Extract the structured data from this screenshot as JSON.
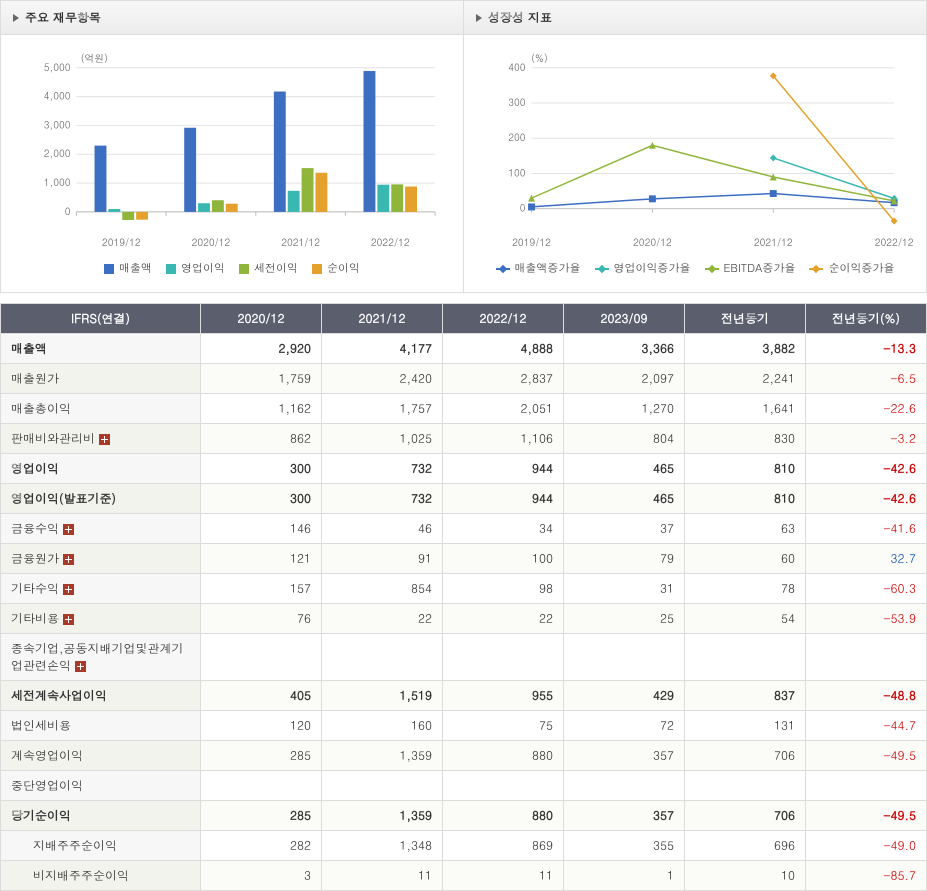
{
  "panels": {
    "left": {
      "title": "주요 재무항목",
      "unit_label": "(억원)"
    },
    "right": {
      "title": "성장성 지표",
      "unit_label": "(%)"
    }
  },
  "barChart": {
    "type": "bar",
    "categories": [
      "2019/12",
      "2020/12",
      "2021/12",
      "2022/12"
    ],
    "series": [
      {
        "name": "매출액",
        "color": "#3c6fc1",
        "values": [
          2300,
          2920,
          4177,
          4888
        ]
      },
      {
        "name": "영업이익",
        "color": "#39b7b1",
        "values": [
          100,
          300,
          732,
          944
        ]
      },
      {
        "name": "세전이익",
        "color": "#8fb53a",
        "values": [
          -280,
          405,
          1519,
          955
        ]
      },
      {
        "name": "순이익",
        "color": "#e4a12b",
        "values": [
          -270,
          285,
          1359,
          880
        ]
      }
    ],
    "ylim": [
      -500,
      5000
    ],
    "yticks": [
      0,
      1000,
      2000,
      3000,
      4000,
      5000
    ],
    "label_fontsize": 10,
    "grid_color": "#e3e3e3",
    "axis_color": "#bcbcbc",
    "background_color": "#ffffff"
  },
  "lineChart": {
    "type": "line",
    "categories": [
      "2019/12",
      "2020/12",
      "2021/12",
      "2022/12"
    ],
    "series": [
      {
        "name": "매출액증가율",
        "color": "#3c6fc1",
        "marker": "square",
        "values": [
          5,
          28,
          43,
          17
        ]
      },
      {
        "name": "영업이익증가율",
        "color": "#39b7b1",
        "marker": "diamond",
        "values": [
          null,
          null,
          144,
          29
        ]
      },
      {
        "name": "EBITDA증가율",
        "color": "#8fb53a",
        "marker": "triangle",
        "values": [
          30,
          180,
          90,
          22
        ]
      },
      {
        "name": "순이익증가율",
        "color": "#e4a12b",
        "marker": "diamond",
        "values": [
          null,
          null,
          377,
          -35
        ]
      }
    ],
    "ylim": [
      -50,
      400
    ],
    "yticks": [
      0,
      100,
      200,
      300,
      400
    ],
    "label_fontsize": 10,
    "grid_color": "#e3e3e3",
    "axis_color": "#bcbcbc",
    "line_width": 1.5,
    "marker_size": 7
  },
  "table": {
    "header": [
      "IFRS(연결)",
      "2020/12",
      "2021/12",
      "2022/12",
      "2023/09",
      "전년동기",
      "전년동기(%)"
    ],
    "rows": [
      {
        "label": "매출액",
        "bold": true,
        "vals": [
          "2,920",
          "4,177",
          "4,888",
          "3,366",
          "3,882"
        ],
        "pct": "-13.3"
      },
      {
        "label": "매출원가",
        "vals": [
          "1,759",
          "2,420",
          "2,837",
          "2,097",
          "2,241"
        ],
        "pct": "-6.5"
      },
      {
        "label": "매출총이익",
        "vals": [
          "1,162",
          "1,757",
          "2,051",
          "1,270",
          "1,641"
        ],
        "pct": "-22.6"
      },
      {
        "label": "판매비와관리비",
        "expand": true,
        "vals": [
          "862",
          "1,025",
          "1,106",
          "804",
          "830"
        ],
        "pct": "-3.2"
      },
      {
        "label": "영업이익",
        "bold": true,
        "vals": [
          "300",
          "732",
          "944",
          "465",
          "810"
        ],
        "pct": "-42.6"
      },
      {
        "label": "영업이익(발표기준)",
        "bold": true,
        "vals": [
          "300",
          "732",
          "944",
          "465",
          "810"
        ],
        "pct": "-42.6"
      },
      {
        "label": "금융수익",
        "expand": true,
        "vals": [
          "146",
          "46",
          "34",
          "37",
          "63"
        ],
        "pct": "-41.6"
      },
      {
        "label": "금융원가",
        "expand": true,
        "vals": [
          "121",
          "91",
          "100",
          "79",
          "60"
        ],
        "pct": "32.7"
      },
      {
        "label": "기타수익",
        "expand": true,
        "vals": [
          "157",
          "854",
          "98",
          "31",
          "78"
        ],
        "pct": "-60.3"
      },
      {
        "label": "기타비용",
        "expand": true,
        "vals": [
          "76",
          "22",
          "22",
          "25",
          "54"
        ],
        "pct": "-53.9"
      },
      {
        "label": "종속기업,공동지배기업및관계기업관련손익",
        "expand": true,
        "vals": [
          "",
          "",
          "",
          "",
          ""
        ],
        "pct": ""
      },
      {
        "label": "세전계속사업이익",
        "bold": true,
        "vals": [
          "405",
          "1,519",
          "955",
          "429",
          "837"
        ],
        "pct": "-48.8"
      },
      {
        "label": "법인세비용",
        "vals": [
          "120",
          "160",
          "75",
          "72",
          "131"
        ],
        "pct": "-44.7"
      },
      {
        "label": "계속영업이익",
        "vals": [
          "285",
          "1,359",
          "880",
          "357",
          "706"
        ],
        "pct": "-49.5"
      },
      {
        "label": "중단영업이익",
        "vals": [
          "",
          "",
          "",
          "",
          ""
        ],
        "pct": ""
      },
      {
        "label": "당기순이익",
        "bold": true,
        "vals": [
          "285",
          "1,359",
          "880",
          "357",
          "706"
        ],
        "pct": "-49.5"
      },
      {
        "label": "지배주주순이익",
        "indent": true,
        "vals": [
          "282",
          "1,348",
          "869",
          "355",
          "696"
        ],
        "pct": "-49.0"
      },
      {
        "label": "비지배주주순이익",
        "indent": true,
        "vals": [
          "3",
          "11",
          "11",
          "1",
          "10"
        ],
        "pct": "-85.7"
      }
    ]
  }
}
